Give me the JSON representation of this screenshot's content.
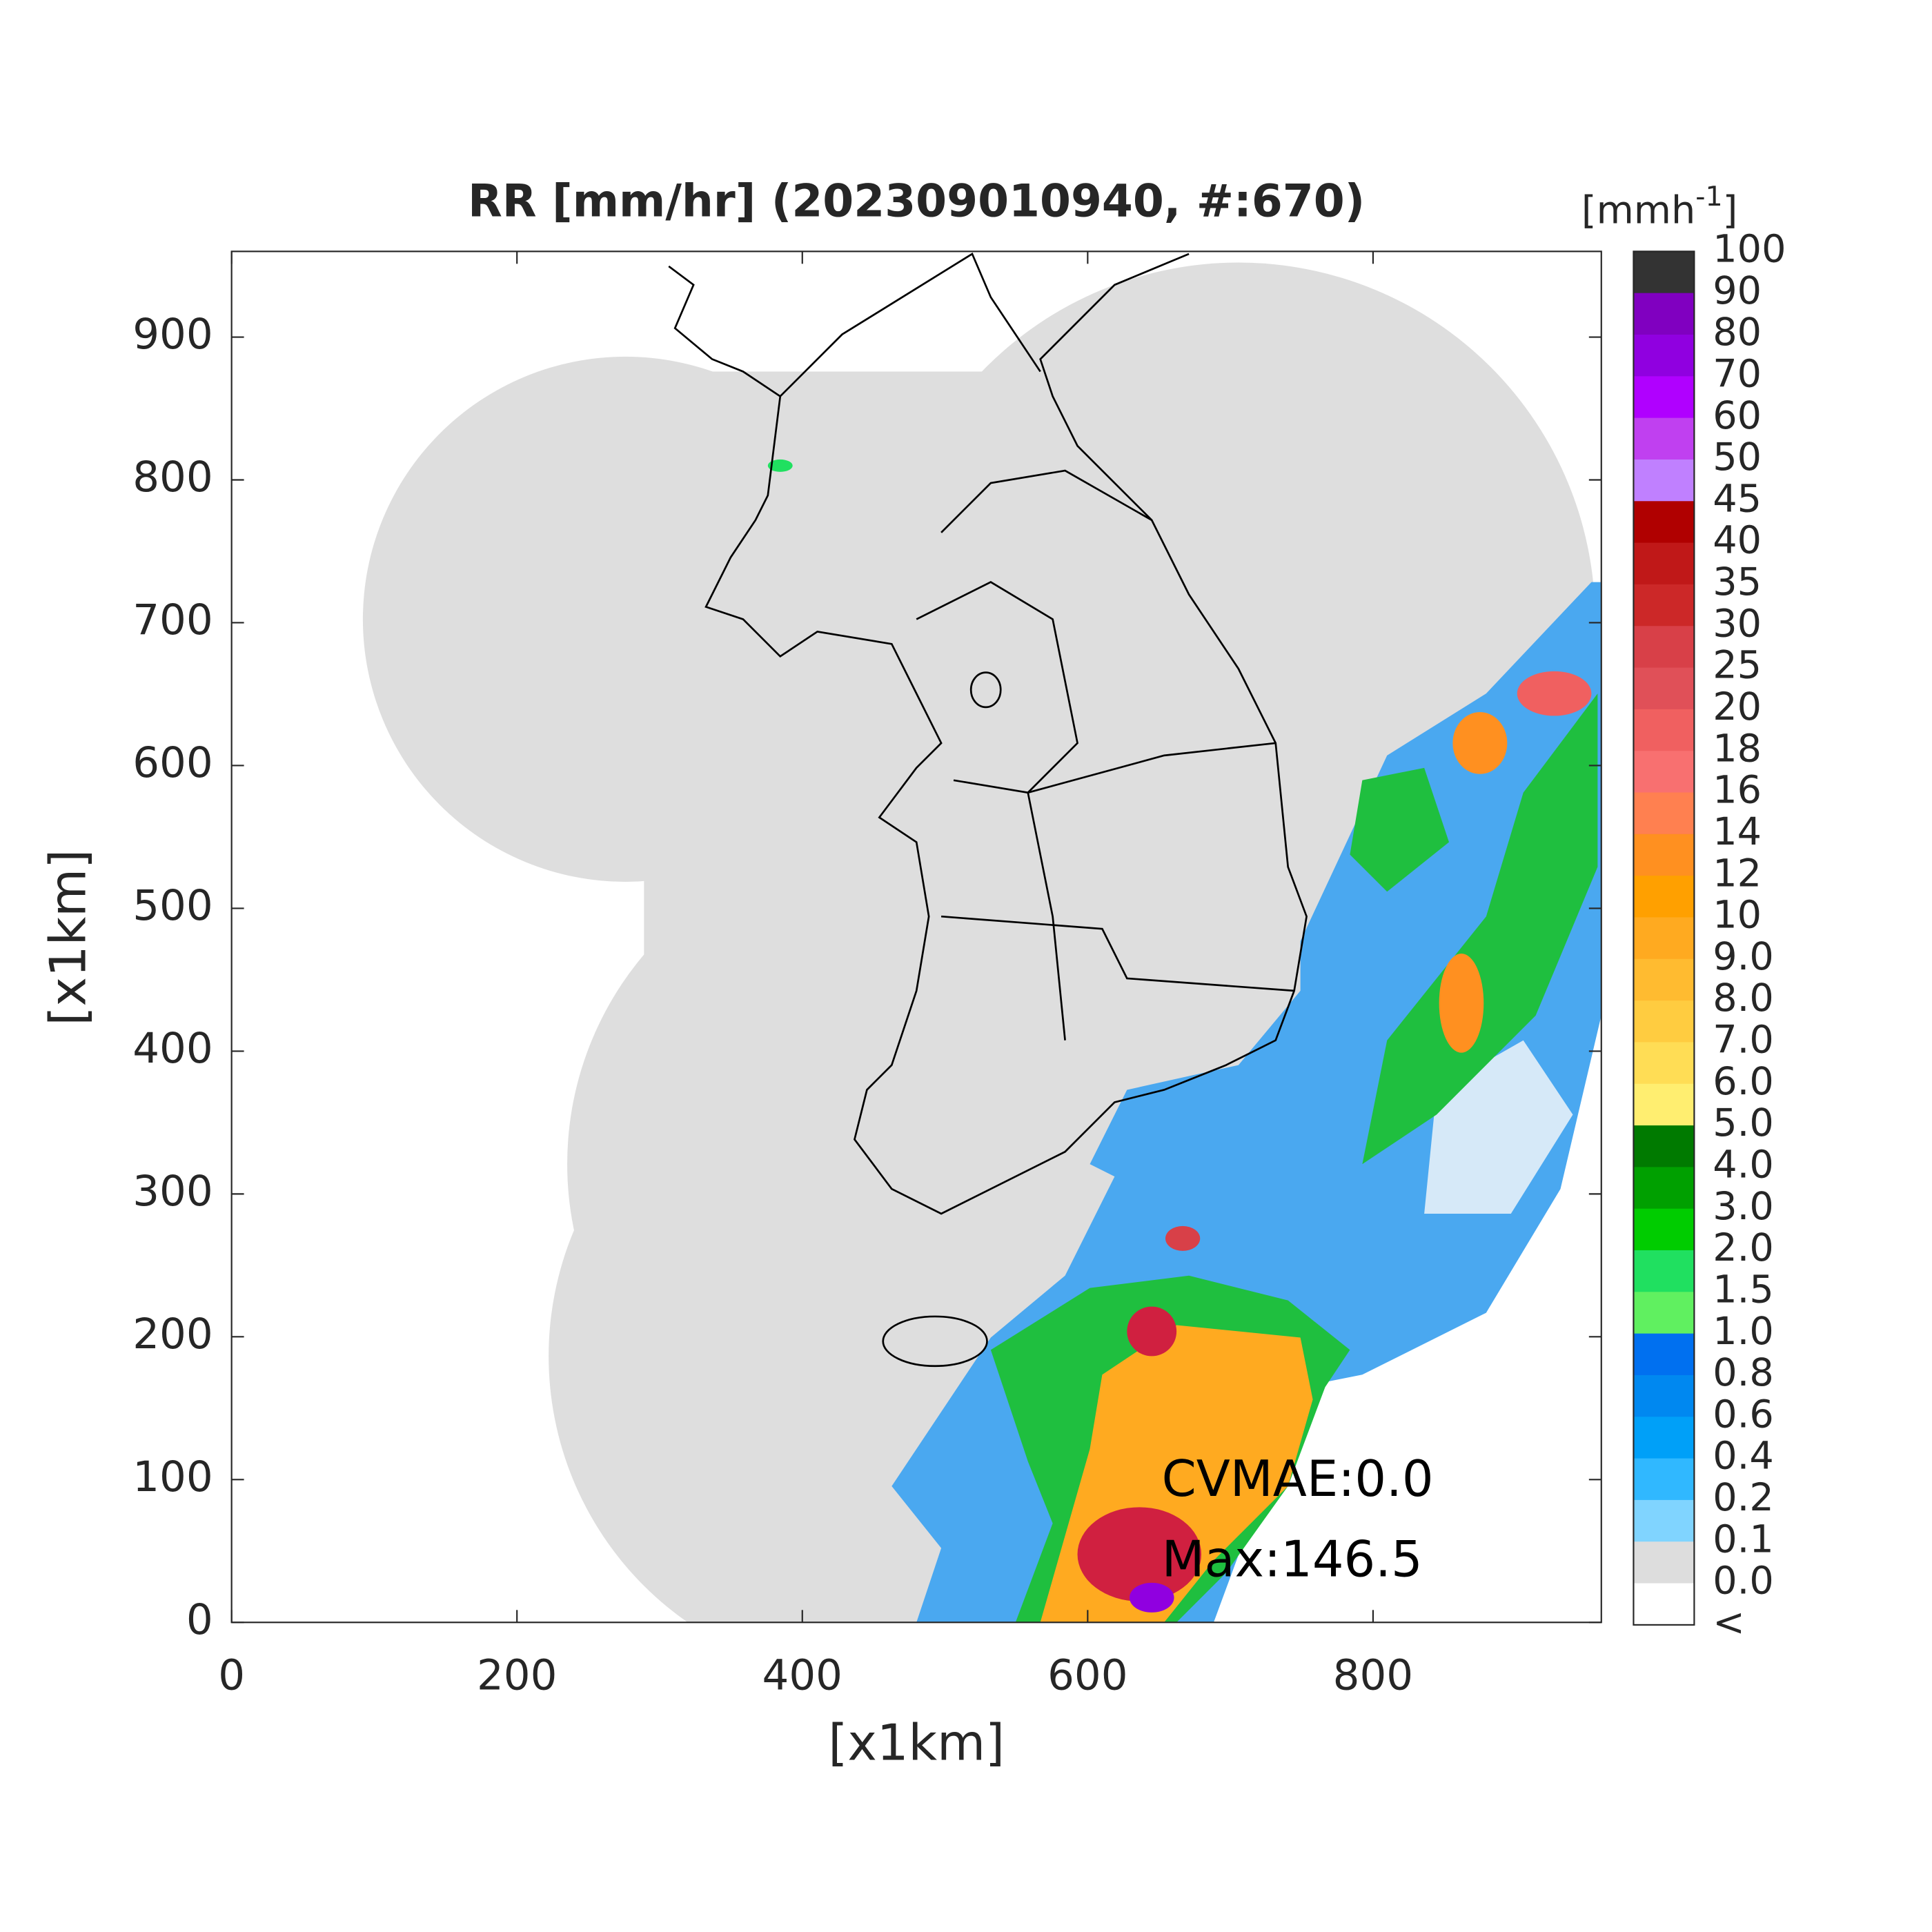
{
  "title": "RR [mm/hr] (202309010940, #:670)",
  "x_axis": {
    "label": "[x1km]",
    "lim": [
      0,
      960
    ],
    "ticks": [
      0,
      200,
      400,
      600,
      800
    ]
  },
  "y_axis": {
    "label": "[x1km]",
    "lim": [
      0,
      960
    ],
    "ticks": [
      0,
      100,
      200,
      300,
      400,
      500,
      600,
      700,
      800,
      900
    ]
  },
  "colorbar": {
    "unit": [
      "[mmh",
      "-1",
      "]"
    ],
    "labels": [
      "100",
      "90",
      "80",
      "70",
      "60",
      "50",
      "45",
      "40",
      "35",
      "30",
      "25",
      "20",
      "18",
      "16",
      "14",
      "12",
      "10",
      "9.0",
      "8.0",
      "7.0",
      "6.0",
      "5.0",
      "4.0",
      "3.0",
      "2.0",
      "1.5",
      "1.0",
      "0.8",
      "0.6",
      "0.4",
      "0.2",
      "0.1",
      "0.0",
      "<"
    ],
    "colors": [
      "#333333",
      "#8000c0",
      "#9000e0",
      "#b000ff",
      "#c040f0",
      "#c080ff",
      "#b00000",
      "#c01818",
      "#cc2828",
      "#d84048",
      "#e05058",
      "#f06060",
      "#f87070",
      "#ff8050",
      "#ff9020",
      "#ffa000",
      "#ffaa20",
      "#ffbb30",
      "#ffcc40",
      "#ffdd55",
      "#ffee70",
      "#007a00",
      "#00a000",
      "#00cc00",
      "#20e060",
      "#60f060",
      "#0070f0",
      "#0088f0",
      "#00a0f8",
      "#30b8ff",
      "#80d4ff",
      "#dddddd",
      "#ffffff"
    ]
  },
  "annotations": [
    "CVMAE:0.0",
    "Max:146.5"
  ]
}
